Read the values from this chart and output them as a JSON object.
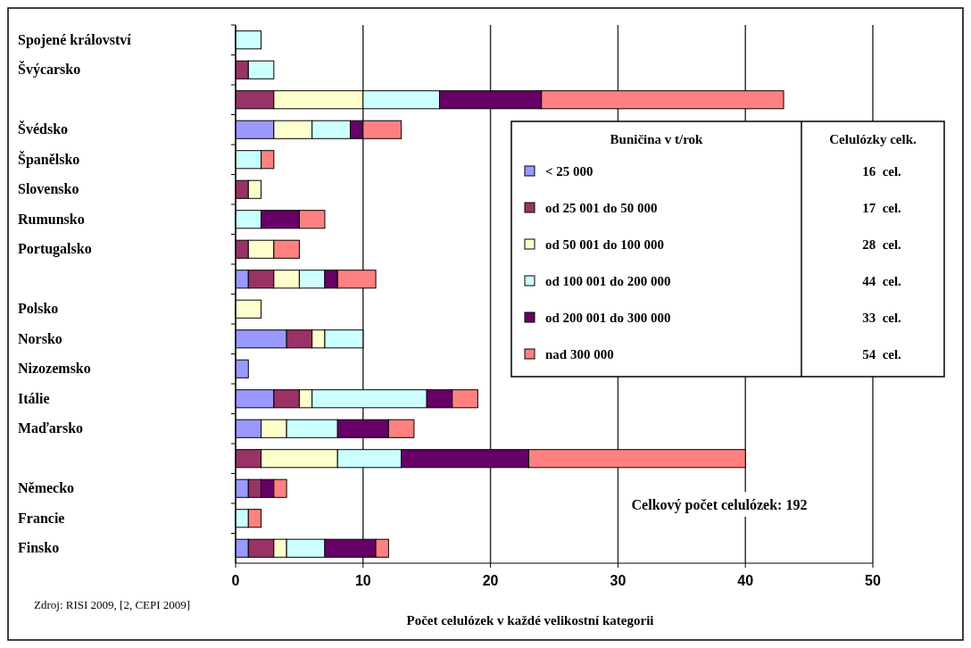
{
  "chart_data": {
    "type": "bar",
    "orientation": "horizontal",
    "stacked": true,
    "categories": [
      "Spojené království",
      "Švýcarsko",
      null,
      "Švédsko",
      "Španělsko",
      "Slovensko",
      "Rumunsko",
      "Portugalsko",
      null,
      "Polsko",
      "Norsko",
      "Nizozemsko",
      "Itálie",
      "Maďarsko",
      null,
      "Německo",
      "Francie",
      "Finsko"
    ],
    "series": [
      {
        "name": "< 25 000",
        "color": "#9999ff",
        "values": [
          null,
          null,
          null,
          3,
          null,
          null,
          null,
          null,
          1,
          null,
          4,
          1,
          3,
          2,
          null,
          1,
          null,
          1
        ]
      },
      {
        "name": "od 25 001 do 50 000",
        "color": "#993366",
        "values": [
          null,
          1,
          3,
          null,
          null,
          1,
          null,
          1,
          2,
          null,
          2,
          null,
          2,
          null,
          2,
          1,
          null,
          2
        ]
      },
      {
        "name": "od 50 001 do 100 000",
        "color": "#ffffcc",
        "values": [
          null,
          null,
          7,
          3,
          null,
          1,
          null,
          2,
          2,
          2,
          1,
          null,
          1,
          2,
          6,
          null,
          null,
          1
        ]
      },
      {
        "name": "od 100 001 do 200 000",
        "color": "#ccffff",
        "values": [
          2,
          2,
          6,
          3,
          2,
          null,
          2,
          null,
          2,
          null,
          3,
          null,
          9,
          4,
          5,
          null,
          1,
          3
        ]
      },
      {
        "name": "od 200 001 do 300 000",
        "color": "#660066",
        "values": [
          null,
          null,
          8,
          1,
          null,
          null,
          3,
          null,
          1,
          null,
          null,
          null,
          2,
          4,
          10,
          1,
          null,
          4
        ]
      },
      {
        "name": "nad 300 000",
        "color": "#ff8080",
        "values": [
          null,
          null,
          19,
          3,
          1,
          null,
          2,
          2,
          3,
          null,
          null,
          null,
          2,
          2,
          17,
          1,
          1,
          1
        ]
      }
    ],
    "xlim": [
      0,
      50
    ],
    "xticks": [
      0,
      10,
      20,
      30,
      40,
      50
    ],
    "grid": "x",
    "legend": "right",
    "legend_title": "Buničina v t/rok",
    "xlabel": "Počet celulózek v každé velikostní kategorii",
    "annotations": [
      "Celulózky celk.",
      "16  cel.",
      "17  cel.",
      "28  cel.",
      "44  cel.",
      "33  cel.",
      "54  cel.",
      "Celkový počet celulózek: 192",
      "Zdroj: RISI 2009, [2, CEPI 2009]"
    ]
  }
}
